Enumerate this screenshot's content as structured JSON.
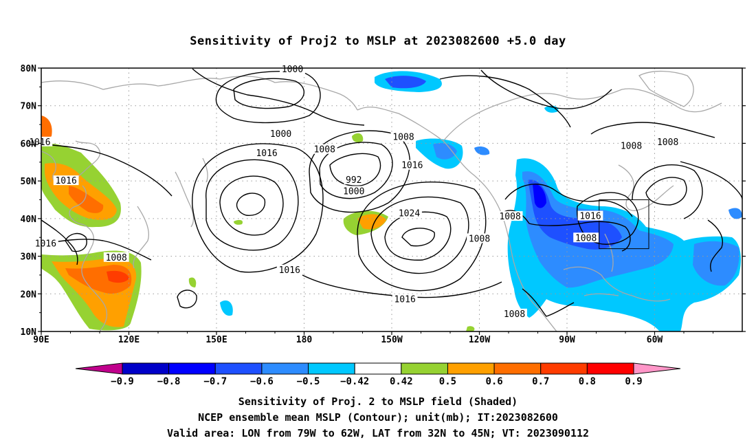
{
  "title": "Sensitivity of Proj2 to MSLP at 2023082600 +5.0 day",
  "lat_labels": [
    "80N",
    "70N",
    "60N",
    "50N",
    "40N",
    "30N",
    "20N",
    "10N"
  ],
  "lon_labels": [
    "90E",
    "120E",
    "150E",
    "180",
    "150W",
    "120W",
    "90W",
    "60W"
  ],
  "contour_labels": [
    {
      "text": "1000",
      "lon": 176,
      "lat": 79.6
    },
    {
      "text": "1000",
      "lon": 172,
      "lat": 62.5
    },
    {
      "text": "1008",
      "lon": 187,
      "lat": 58.3
    },
    {
      "text": "1016",
      "lon": 89.5,
      "lat": 60.3
    },
    {
      "text": "1016",
      "lon": 167.2,
      "lat": 57.3
    },
    {
      "text": "1016",
      "lon": 98.5,
      "lat": 50
    },
    {
      "text": "992",
      "lon": 197,
      "lat": 50.2
    },
    {
      "text": "1000",
      "lon": 197,
      "lat": 47.2
    },
    {
      "text": "1008",
      "lon": 214,
      "lat": 61.6
    },
    {
      "text": "1016",
      "lon": 217,
      "lat": 54.1
    },
    {
      "text": "1024",
      "lon": 216,
      "lat": 41.3
    },
    {
      "text": "1016",
      "lon": 91.5,
      "lat": 33.3
    },
    {
      "text": "1008",
      "lon": 115.7,
      "lat": 29.6
    },
    {
      "text": "1016",
      "lon": 175,
      "lat": 26.3
    },
    {
      "text": "1016",
      "lon": 214.5,
      "lat": 18.5
    },
    {
      "text": "1008",
      "lon": 240,
      "lat": 34.6
    },
    {
      "text": "1008",
      "lon": 250.5,
      "lat": 40.5
    },
    {
      "text": "1016",
      "lon": 278,
      "lat": 40.6
    },
    {
      "text": "1008",
      "lon": 276.5,
      "lat": 34.8
    },
    {
      "text": "1008",
      "lon": 252,
      "lat": 14.6
    },
    {
      "text": "1008",
      "lon": 292,
      "lat": 59.3
    },
    {
      "text": "1008",
      "lon": 304.5,
      "lat": 60.3
    }
  ],
  "colorbar": {
    "colors": [
      "#c0008c",
      "#0000c8",
      "#0000ff",
      "#1e50ff",
      "#2d8cff",
      "#00c8ff",
      "#ffffff",
      "#96d232",
      "#ffa000",
      "#ff6e00",
      "#ff3c00",
      "#ff0000",
      "#ff96c8"
    ],
    "labels": [
      "−0.9",
      "−0.8",
      "−0.7",
      "−0.6",
      "−0.5",
      "−0.42",
      "0.42",
      "0.5",
      "0.6",
      "0.7",
      "0.8",
      "0.9"
    ]
  },
  "valid_area": {
    "lon_min": -79,
    "lon_max": -62,
    "lat_min": 32,
    "lat_max": 45
  },
  "captions": [
    "Sensitivity of Proj. 2 to MSLP field (Shaded)",
    "NCEP ensemble mean MSLP (Contour); unit(mb); IT:2023082600",
    "Valid area: LON from 79W to 62W, LAT from 32N to 45N; VT: 2023090112"
  ]
}
